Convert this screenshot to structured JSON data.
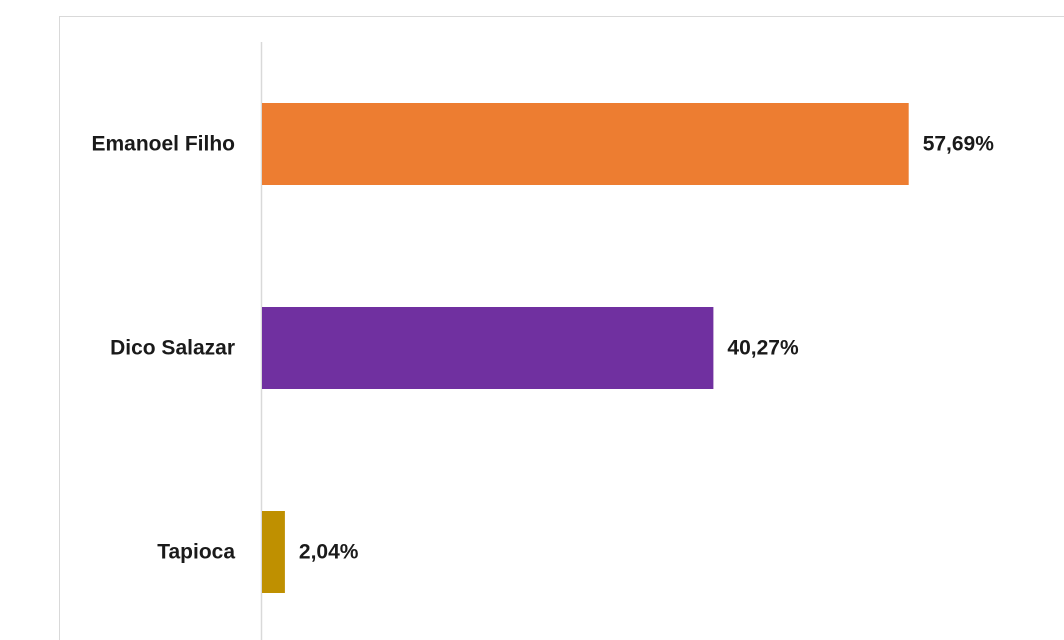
{
  "chart_data": {
    "type": "bar",
    "orientation": "horizontal",
    "categories": [
      "Emanoel Filho",
      "Dico Salazar",
      "Tapioca"
    ],
    "values": [
      57.69,
      40.27,
      2.04
    ],
    "value_labels": [
      "57,69%",
      "40,27%",
      "2,04%"
    ],
    "colors": [
      "#ed7d31",
      "#7030a0",
      "#bf9000"
    ],
    "xlim": [
      0,
      70
    ],
    "grid": false,
    "legend": "none"
  }
}
